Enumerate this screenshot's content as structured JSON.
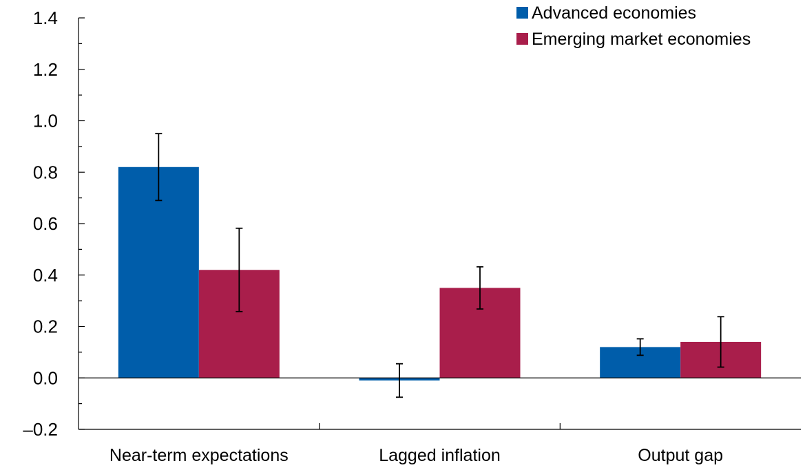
{
  "chart_data": {
    "type": "bar",
    "categories": [
      "Near-term expectations",
      "Lagged inflation",
      "Output gap"
    ],
    "series": [
      {
        "name": "Advanced economies",
        "color": "#005DAA",
        "values": [
          0.82,
          -0.01,
          0.12
        ],
        "error_low": [
          0.69,
          -0.075,
          0.088
        ],
        "error_high": [
          0.95,
          0.055,
          0.152
        ]
      },
      {
        "name": "Emerging market economies",
        "color": "#A91E4B",
        "values": [
          0.42,
          0.35,
          0.14
        ],
        "error_low": [
          0.258,
          0.268,
          0.042
        ],
        "error_high": [
          0.582,
          0.432,
          0.238
        ]
      }
    ],
    "ylim": [
      -0.2,
      1.4
    ],
    "yticks": [
      -0.2,
      0.0,
      0.2,
      0.4,
      0.6,
      0.8,
      1.0,
      1.2,
      1.4
    ],
    "ytick_labels": [
      "–0.2",
      "0.0",
      "0.2",
      "0.4",
      "0.6",
      "0.8",
      "1.0",
      "1.2",
      "1.4"
    ],
    "grid": false,
    "legend_position": "top-right"
  }
}
